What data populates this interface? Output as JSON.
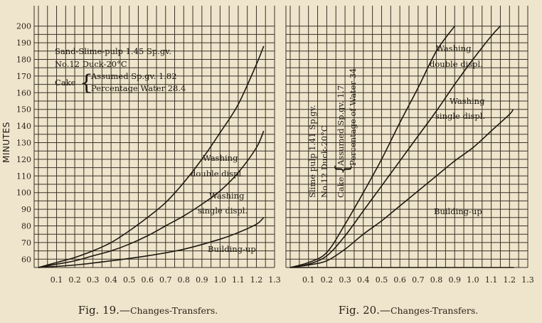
{
  "ylabel": "MINUTES",
  "chart_data": [
    {
      "type": "line",
      "caption": "Fig. 19.—Changes-Transfers.",
      "caption_prefix": "Fig. 19.—",
      "caption_sc": "Changes-Transfers.",
      "xlim": [
        0,
        1.3
      ],
      "ylim": [
        50,
        200
      ],
      "xticks": [
        "0.1",
        "0.2",
        "0.3",
        "0.4",
        "0.5",
        "0.6",
        "0.7",
        "0.8",
        "0.9",
        "1.0",
        "1.1",
        "1.2",
        "1.3"
      ],
      "yticks": [
        "60",
        "70",
        "80",
        "90",
        "100",
        "110",
        "120",
        "130",
        "140",
        "150",
        "160",
        "170",
        "180",
        "190",
        "200"
      ],
      "annotation": {
        "line1": "Sand-Slime-pulp 1.45 Sp.gv.",
        "line2": "No.12 Duck-20°C",
        "cake": "Cake",
        "cake1": "Assumed Sp.gv. 1.82",
        "cake2": "Percentage Water 28.4"
      },
      "series": [
        {
          "name": "Washing double displ.",
          "label1": "Washing",
          "label2": "double displ.",
          "x": [
            0,
            0.1,
            0.2,
            0.3,
            0.4,
            0.5,
            0.6,
            0.7,
            0.8,
            0.9,
            1.0,
            1.1,
            1.2,
            1.24
          ],
          "y": [
            55,
            58,
            61,
            65,
            70,
            77,
            85,
            94,
            106,
            120,
            136,
            153,
            177,
            188
          ]
        },
        {
          "name": "Washing single displ.",
          "label1": "Washing",
          "label2": "single displ.",
          "x": [
            0,
            0.1,
            0.2,
            0.3,
            0.4,
            0.5,
            0.6,
            0.7,
            0.8,
            0.9,
            1.0,
            1.1,
            1.2,
            1.24
          ],
          "y": [
            55,
            57,
            59,
            62,
            65,
            69,
            74,
            80,
            86,
            93,
            101,
            112,
            127,
            137
          ]
        },
        {
          "name": "Building-up",
          "label1": "Building-up",
          "label2": "",
          "x": [
            0,
            0.2,
            0.4,
            0.6,
            0.8,
            1.0,
            1.1,
            1.2,
            1.24
          ],
          "y": [
            55,
            56.5,
            59,
            62,
            66,
            72,
            76,
            81,
            85
          ]
        }
      ]
    },
    {
      "type": "line",
      "caption": "Fig. 20.—Changes-Transfers.",
      "caption_prefix": "Fig. 20.—",
      "caption_sc": "Changes-Transfers.",
      "xlim": [
        0,
        1.3
      ],
      "ylim": [
        50,
        200
      ],
      "xticks": [
        "0.1",
        "0.2",
        "0.3",
        "0.4",
        "0.5",
        "0.6",
        "0.7",
        "0.8",
        "0.9",
        "1.0",
        "1.1",
        "1.2",
        "1.3"
      ],
      "annotation": {
        "line1": "Slime pulp 1.41 Sp.gv.",
        "line2": "No.12 Duck-20°C",
        "cake": "Cake",
        "cake1": "Assumed Sp.gv. 1.7",
        "cake2": "Percentage of Water 34"
      },
      "series": [
        {
          "name": "Steepest curve",
          "label1": "",
          "label2": "",
          "x": [
            0,
            0.1,
            0.2,
            0.3,
            0.4,
            0.5,
            0.6,
            0.7,
            0.8,
            0.9
          ],
          "y": [
            55,
            58,
            64,
            81,
            100,
            120,
            142,
            163,
            185,
            200
          ]
        },
        {
          "name": "Washing double displ.",
          "label1": "Washing",
          "label2": "double displ.",
          "x": [
            0,
            0.1,
            0.2,
            0.3,
            0.4,
            0.5,
            0.6,
            0.7,
            0.8,
            0.9,
            1.0,
            1.1,
            1.15
          ],
          "y": [
            55,
            57,
            62,
            74,
            89,
            104,
            119,
            134,
            149,
            165,
            180,
            194,
            200
          ]
        },
        {
          "name": "Washing single displ.",
          "label1": "Washing",
          "label2": "single displ.",
          "x": [
            0,
            0.1,
            0.2,
            0.3,
            0.4,
            0.5,
            0.6,
            0.7,
            0.8,
            0.9,
            1.0,
            1.1,
            1.2,
            1.22
          ],
          "y": [
            55,
            56.5,
            59,
            66,
            75,
            83,
            92,
            101,
            110,
            119,
            127,
            137,
            147,
            150
          ]
        },
        {
          "name": "Building-up",
          "label1": "Building-up",
          "label2": "",
          "x": [
            0,
            0.2,
            0.4,
            0.6,
            0.8,
            1.0,
            1.2,
            1.22
          ],
          "y": [
            55,
            55,
            55,
            55,
            55,
            55,
            55,
            55
          ]
        }
      ]
    }
  ]
}
